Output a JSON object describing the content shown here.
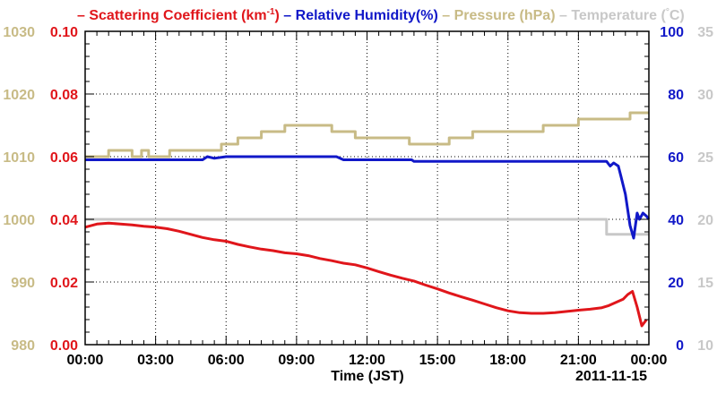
{
  "chart_data": {
    "type": "line",
    "legend": [
      {
        "name": "Scattering Coefficient (km",
        "sup": "-1",
        "tail": ")",
        "color": "#e0161b"
      },
      {
        "name": "Relative Humidity(%)",
        "color": "#1118c8"
      },
      {
        "name": "Pressure (hPa)",
        "color": "#c8bb86"
      },
      {
        "name": "Temperature (",
        "deg": "°",
        "tail": "C)",
        "color": "#c8c8c8"
      }
    ],
    "xlabel": "Time (JST)",
    "date_label": "2011-11-15",
    "x_ticks": [
      "00:00",
      "03:00",
      "06:00",
      "09:00",
      "12:00",
      "15:00",
      "18:00",
      "21:00",
      "00:00"
    ],
    "xlim_hours": [
      0,
      24
    ],
    "grid": true,
    "axes": {
      "pressure": {
        "label": "",
        "ticks": [
          "1030",
          "1020",
          "1010",
          "1000",
          "990",
          "980"
        ],
        "range": [
          980,
          1030
        ],
        "color": "#c8bb86"
      },
      "scattering": {
        "label": "",
        "ticks": [
          "0.10",
          "0.08",
          "0.06",
          "0.04",
          "0.02",
          "0.00"
        ],
        "range": [
          0,
          0.1
        ],
        "color": "#e0161b"
      },
      "humidity": {
        "label": "",
        "ticks": [
          "100",
          "80",
          "60",
          "40",
          "20",
          "0"
        ],
        "range": [
          0,
          100
        ],
        "color": "#1118c8"
      },
      "temperature": {
        "label": "",
        "ticks": [
          "35",
          "30",
          "25",
          "20",
          "15",
          "10"
        ],
        "range": [
          10,
          35
        ],
        "color": "#c8c8c8"
      }
    },
    "series": [
      {
        "name": "Scattering Coefficient",
        "axis": "scattering",
        "color": "#e0161b",
        "x": [
          0,
          0.5,
          1.0,
          1.5,
          2.0,
          2.5,
          3.0,
          3.5,
          4.0,
          4.5,
          5.0,
          5.5,
          6.0,
          6.5,
          7.0,
          7.5,
          8.0,
          8.5,
          9.0,
          9.5,
          10.0,
          10.5,
          11.0,
          11.5,
          12.0,
          12.5,
          13.0,
          13.5,
          14.0,
          14.5,
          15.0,
          15.5,
          16.0,
          16.5,
          17.0,
          17.5,
          18.0,
          18.5,
          19.0,
          19.5,
          20.0,
          20.5,
          21.0,
          21.5,
          22.0,
          22.3,
          22.6,
          22.9,
          23.1,
          23.3,
          23.5,
          23.7,
          23.9
        ],
        "y": [
          0.0375,
          0.0385,
          0.0388,
          0.0385,
          0.0382,
          0.0378,
          0.0375,
          0.037,
          0.0362,
          0.0352,
          0.0342,
          0.0335,
          0.033,
          0.032,
          0.0312,
          0.0305,
          0.03,
          0.0293,
          0.029,
          0.0284,
          0.0275,
          0.0268,
          0.026,
          0.0255,
          0.0245,
          0.0233,
          0.0222,
          0.0212,
          0.0203,
          0.019,
          0.0178,
          0.0165,
          0.0153,
          0.0142,
          0.013,
          0.0118,
          0.0108,
          0.0102,
          0.01,
          0.01,
          0.0102,
          0.0106,
          0.011,
          0.0113,
          0.0118,
          0.0125,
          0.0135,
          0.0145,
          0.016,
          0.017,
          0.012,
          0.006,
          0.008
        ]
      },
      {
        "name": "Relative Humidity",
        "axis": "humidity",
        "color": "#1118c8",
        "x": [
          0,
          5.0,
          5.2,
          5.5,
          6.0,
          8.0,
          10.7,
          11.0,
          13.9,
          14.0,
          18.0,
          21.0,
          22.2,
          22.35,
          22.5,
          22.7,
          22.8,
          23.0,
          23.2,
          23.35,
          23.5,
          23.6,
          23.75,
          23.9,
          24.0
        ],
        "y": [
          59,
          59,
          60,
          59.5,
          60,
          60,
          60,
          59,
          59,
          58.5,
          58.5,
          58.5,
          58.5,
          57,
          58,
          57,
          54,
          48,
          38,
          34,
          42,
          40,
          42,
          41,
          40
        ]
      },
      {
        "name": "Pressure",
        "axis": "pressure",
        "color": "#c8bb86",
        "step": true,
        "x": [
          0,
          1.0,
          2.0,
          2.4,
          2.7,
          3.6,
          5.8,
          6.5,
          7.5,
          8.5,
          10.5,
          11.5,
          13.8,
          15.5,
          16.5,
          18.0,
          19.5,
          20.0,
          21.0,
          22.2,
          23.2,
          24.0
        ],
        "y": [
          1010,
          1011,
          1010,
          1011,
          1010,
          1011,
          1012,
          1013,
          1014,
          1015,
          1014,
          1013,
          1012,
          1013,
          1014,
          1014,
          1015,
          1015,
          1016,
          1016,
          1017,
          1017
        ]
      },
      {
        "name": "Temperature",
        "axis": "temperature",
        "color": "#c8c8c8",
        "step": true,
        "x": [
          0,
          22.2,
          23.4,
          24.0
        ],
        "y": [
          20,
          18.8,
          18.8,
          18.8
        ]
      }
    ]
  }
}
